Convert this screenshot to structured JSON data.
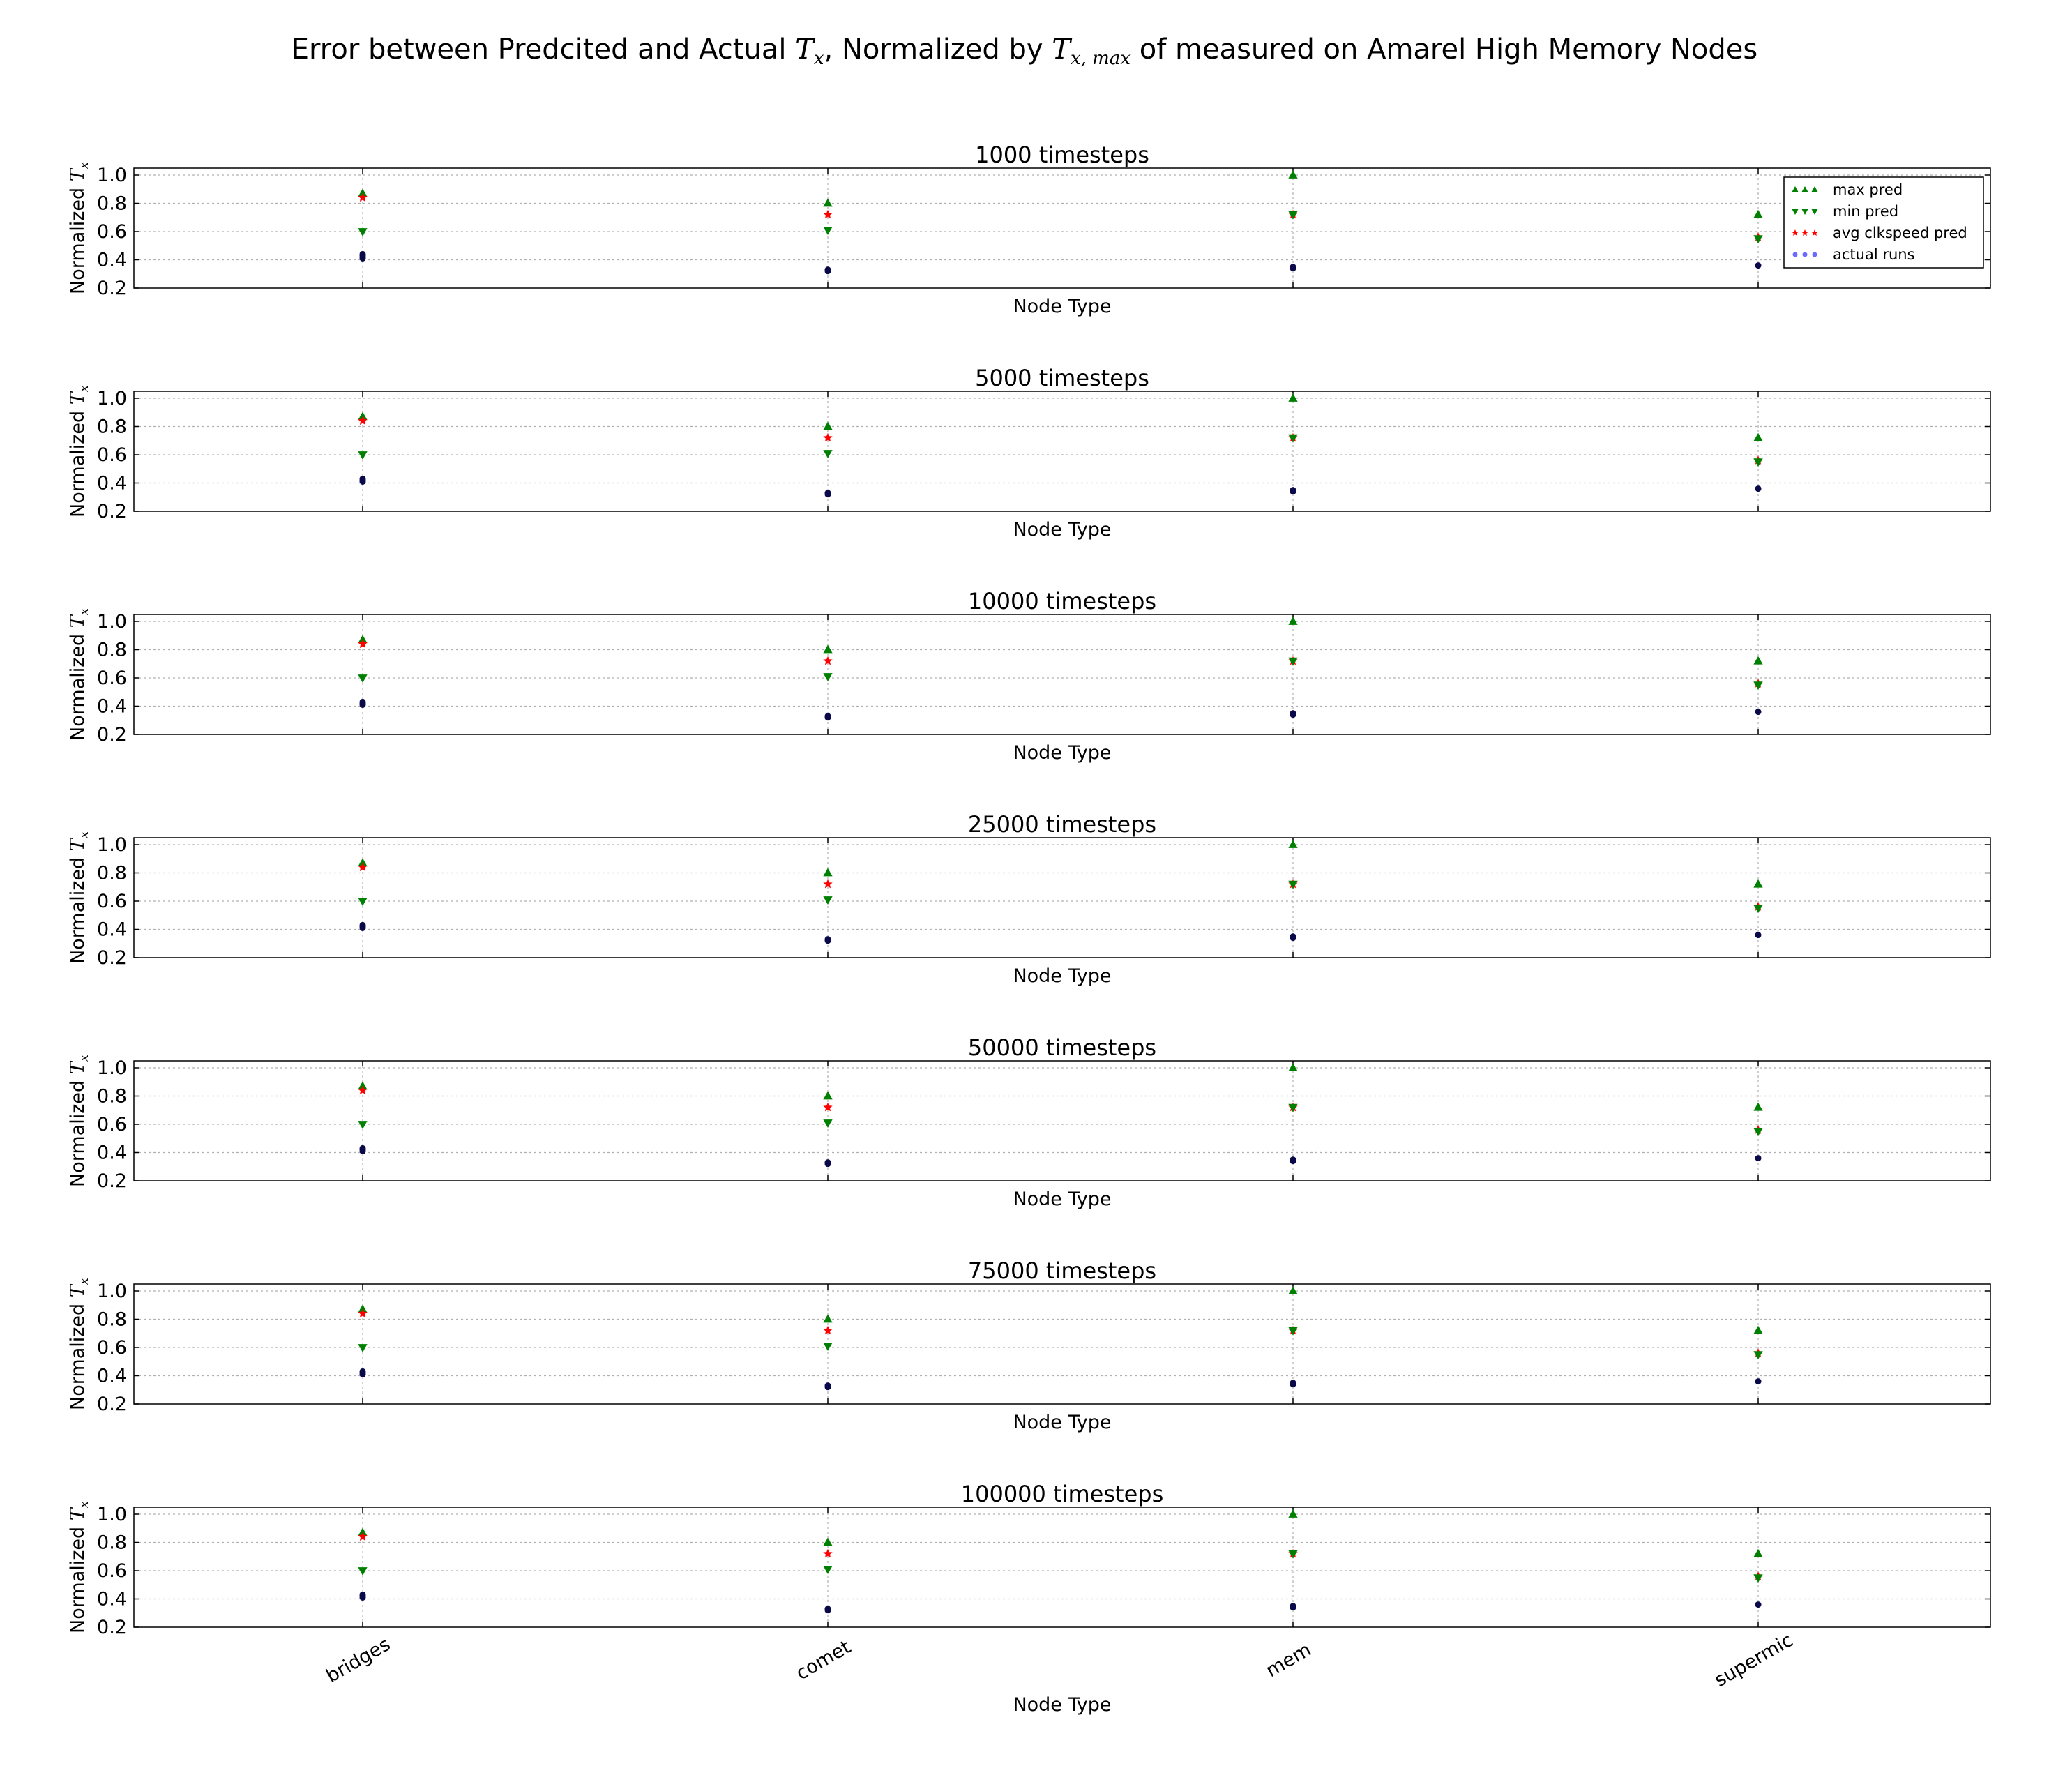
{
  "chart_data": {
    "type": "scatter",
    "title_text_before": "Error between Predcited and Actual ",
    "title_text_middle": ", Normalized by ",
    "title_text_after": " of measured on Amarel High Memory Nodes",
    "title_math_1": "T",
    "title_math_1_sub": "x",
    "title_math_2": "T",
    "title_math_2_sub": "x, max",
    "ylabel": "Normalized ",
    "ylabel_math": "T",
    "ylabel_math_sub": "x",
    "xlabel": "Node Type",
    "categories": [
      "bridges",
      "comet",
      "mem",
      "supermic"
    ],
    "ylim": [
      0.2,
      1.0
    ],
    "yticks": [
      0.2,
      0.4,
      0.6,
      0.8,
      1.0
    ],
    "ytick_labels": [
      "0.2",
      "0.4",
      "0.6",
      "0.8",
      "1.0"
    ],
    "grid": true,
    "legend_position": "top-right",
    "legend": [
      {
        "label": "max pred",
        "marker": "triangle-up",
        "color": "#008000"
      },
      {
        "label": "min pred",
        "marker": "triangle-down",
        "color": "#008000"
      },
      {
        "label": "avg clkspeed pred",
        "marker": "star",
        "color": "#ff0000"
      },
      {
        "label": "actual runs",
        "marker": "circle",
        "color": "#6a6aff"
      }
    ],
    "panels": [
      {
        "subtitle": "1000 timesteps",
        "max_pred": [
          0.87,
          0.8,
          1.0,
          0.72
        ],
        "min_pred": [
          0.6,
          0.61,
          0.72,
          0.55
        ],
        "avg_pred": [
          0.84,
          0.72,
          0.72,
          0.56
        ],
        "actual": [
          [
            0.41,
            0.43,
            0.44,
            0.42
          ],
          [
            0.32,
            0.33
          ],
          [
            0.34,
            0.35
          ],
          [
            0.36
          ]
        ]
      },
      {
        "subtitle": "5000 timesteps",
        "max_pred": [
          0.87,
          0.8,
          1.0,
          0.72
        ],
        "min_pred": [
          0.6,
          0.61,
          0.72,
          0.55
        ],
        "avg_pred": [
          0.84,
          0.72,
          0.72,
          0.56
        ],
        "actual": [
          [
            0.41,
            0.42,
            0.43
          ],
          [
            0.32,
            0.33
          ],
          [
            0.34,
            0.35
          ],
          [
            0.36
          ]
        ]
      },
      {
        "subtitle": "10000 timesteps",
        "max_pred": [
          0.87,
          0.8,
          1.0,
          0.72
        ],
        "min_pred": [
          0.6,
          0.61,
          0.72,
          0.55
        ],
        "avg_pred": [
          0.84,
          0.72,
          0.72,
          0.56
        ],
        "actual": [
          [
            0.41,
            0.42,
            0.43
          ],
          [
            0.32,
            0.33
          ],
          [
            0.34,
            0.35
          ],
          [
            0.36
          ]
        ]
      },
      {
        "subtitle": "25000 timesteps",
        "max_pred": [
          0.87,
          0.8,
          1.0,
          0.72
        ],
        "min_pred": [
          0.6,
          0.61,
          0.72,
          0.55
        ],
        "avg_pred": [
          0.84,
          0.72,
          0.72,
          0.56
        ],
        "actual": [
          [
            0.41,
            0.42,
            0.43
          ],
          [
            0.32,
            0.33
          ],
          [
            0.34,
            0.35
          ],
          [
            0.36
          ]
        ]
      },
      {
        "subtitle": "50000 timesteps",
        "max_pred": [
          0.87,
          0.8,
          1.0,
          0.72
        ],
        "min_pred": [
          0.6,
          0.61,
          0.72,
          0.55
        ],
        "avg_pred": [
          0.84,
          0.72,
          0.72,
          0.56
        ],
        "actual": [
          [
            0.41,
            0.42,
            0.43
          ],
          [
            0.32,
            0.33
          ],
          [
            0.34,
            0.35
          ],
          [
            0.36
          ]
        ]
      },
      {
        "subtitle": "75000 timesteps",
        "max_pred": [
          0.87,
          0.8,
          1.0,
          0.72
        ],
        "min_pred": [
          0.6,
          0.61,
          0.72,
          0.55
        ],
        "avg_pred": [
          0.84,
          0.72,
          0.72,
          0.56
        ],
        "actual": [
          [
            0.41,
            0.42,
            0.43
          ],
          [
            0.32,
            0.33
          ],
          [
            0.34,
            0.35
          ],
          [
            0.36
          ]
        ]
      },
      {
        "subtitle": "100000 timesteps",
        "max_pred": [
          0.87,
          0.8,
          1.0,
          0.72
        ],
        "min_pred": [
          0.6,
          0.61,
          0.72,
          0.55
        ],
        "avg_pred": [
          0.84,
          0.72,
          0.72,
          0.56
        ],
        "actual": [
          [
            0.41,
            0.42,
            0.43
          ],
          [
            0.32,
            0.33
          ],
          [
            0.34,
            0.35
          ],
          [
            0.36
          ]
        ]
      }
    ],
    "colors": {
      "max_pred": "#008000",
      "min_pred": "#008000",
      "avg_pred": "#ff0000",
      "actual": "#0a0a4a",
      "legend_actual": "#6a6aff"
    }
  }
}
